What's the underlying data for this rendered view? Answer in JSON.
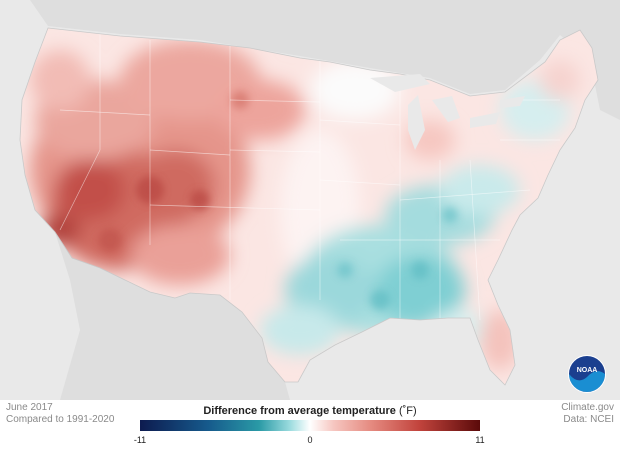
{
  "period": "June 2017",
  "baseline": "Compared to 1991-2020",
  "source_site": "Climate.gov",
  "source_data": "Data: NCEI",
  "legend": {
    "title": "Difference from average temperature",
    "unit": "(˚F)",
    "min_label": "-11",
    "mid_label": "0",
    "max_label": "11",
    "min": -11,
    "max": 11
  },
  "logo_text": "NOAA",
  "colors": {
    "cold_extreme": "#0d1b4f",
    "cold": "#2a9aa6",
    "neutral": "#ffffff",
    "warm": "#e58a80",
    "warm_extreme": "#5b0a0a",
    "background": "#e9e9e9"
  }
}
